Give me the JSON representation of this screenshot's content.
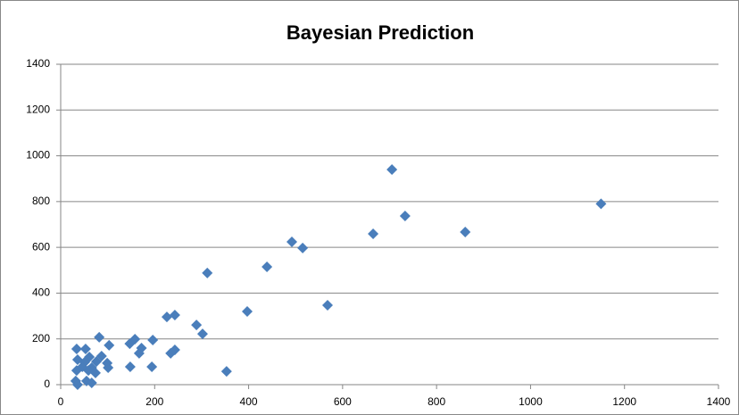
{
  "chart_data": {
    "type": "scatter",
    "title": "Bayesian Prediction",
    "x": [
      705,
      1150,
      733,
      861,
      665,
      492,
      515,
      439,
      312,
      568,
      397,
      243,
      226,
      289,
      302,
      353,
      243,
      234,
      196,
      172,
      167,
      158,
      147,
      148,
      194,
      103,
      82,
      87,
      99,
      101,
      76,
      66,
      59,
      74,
      53,
      34,
      36,
      34,
      32,
      36,
      55,
      66,
      51,
      61,
      46
    ],
    "values": [
      940,
      790,
      737,
      667,
      659,
      624,
      597,
      515,
      488,
      347,
      320,
      304,
      296,
      261,
      222,
      58,
      152,
      137,
      195,
      160,
      137,
      199,
      179,
      78,
      78,
      172,
      207,
      125,
      94,
      74,
      101,
      74,
      62,
      51,
      156,
      156,
      109,
      62,
      16,
      0,
      16,
      8,
      98,
      121,
      78
    ],
    "color": "#4a7ebb",
    "xlim": [
      0,
      1400
    ],
    "xticks": [
      0,
      200,
      400,
      600,
      800,
      1000,
      1200,
      1400
    ],
    "ylim": [
      0,
      1400
    ],
    "yticks": [
      0,
      200,
      400,
      600,
      800,
      1000,
      1200,
      1400
    ],
    "grid": true
  }
}
